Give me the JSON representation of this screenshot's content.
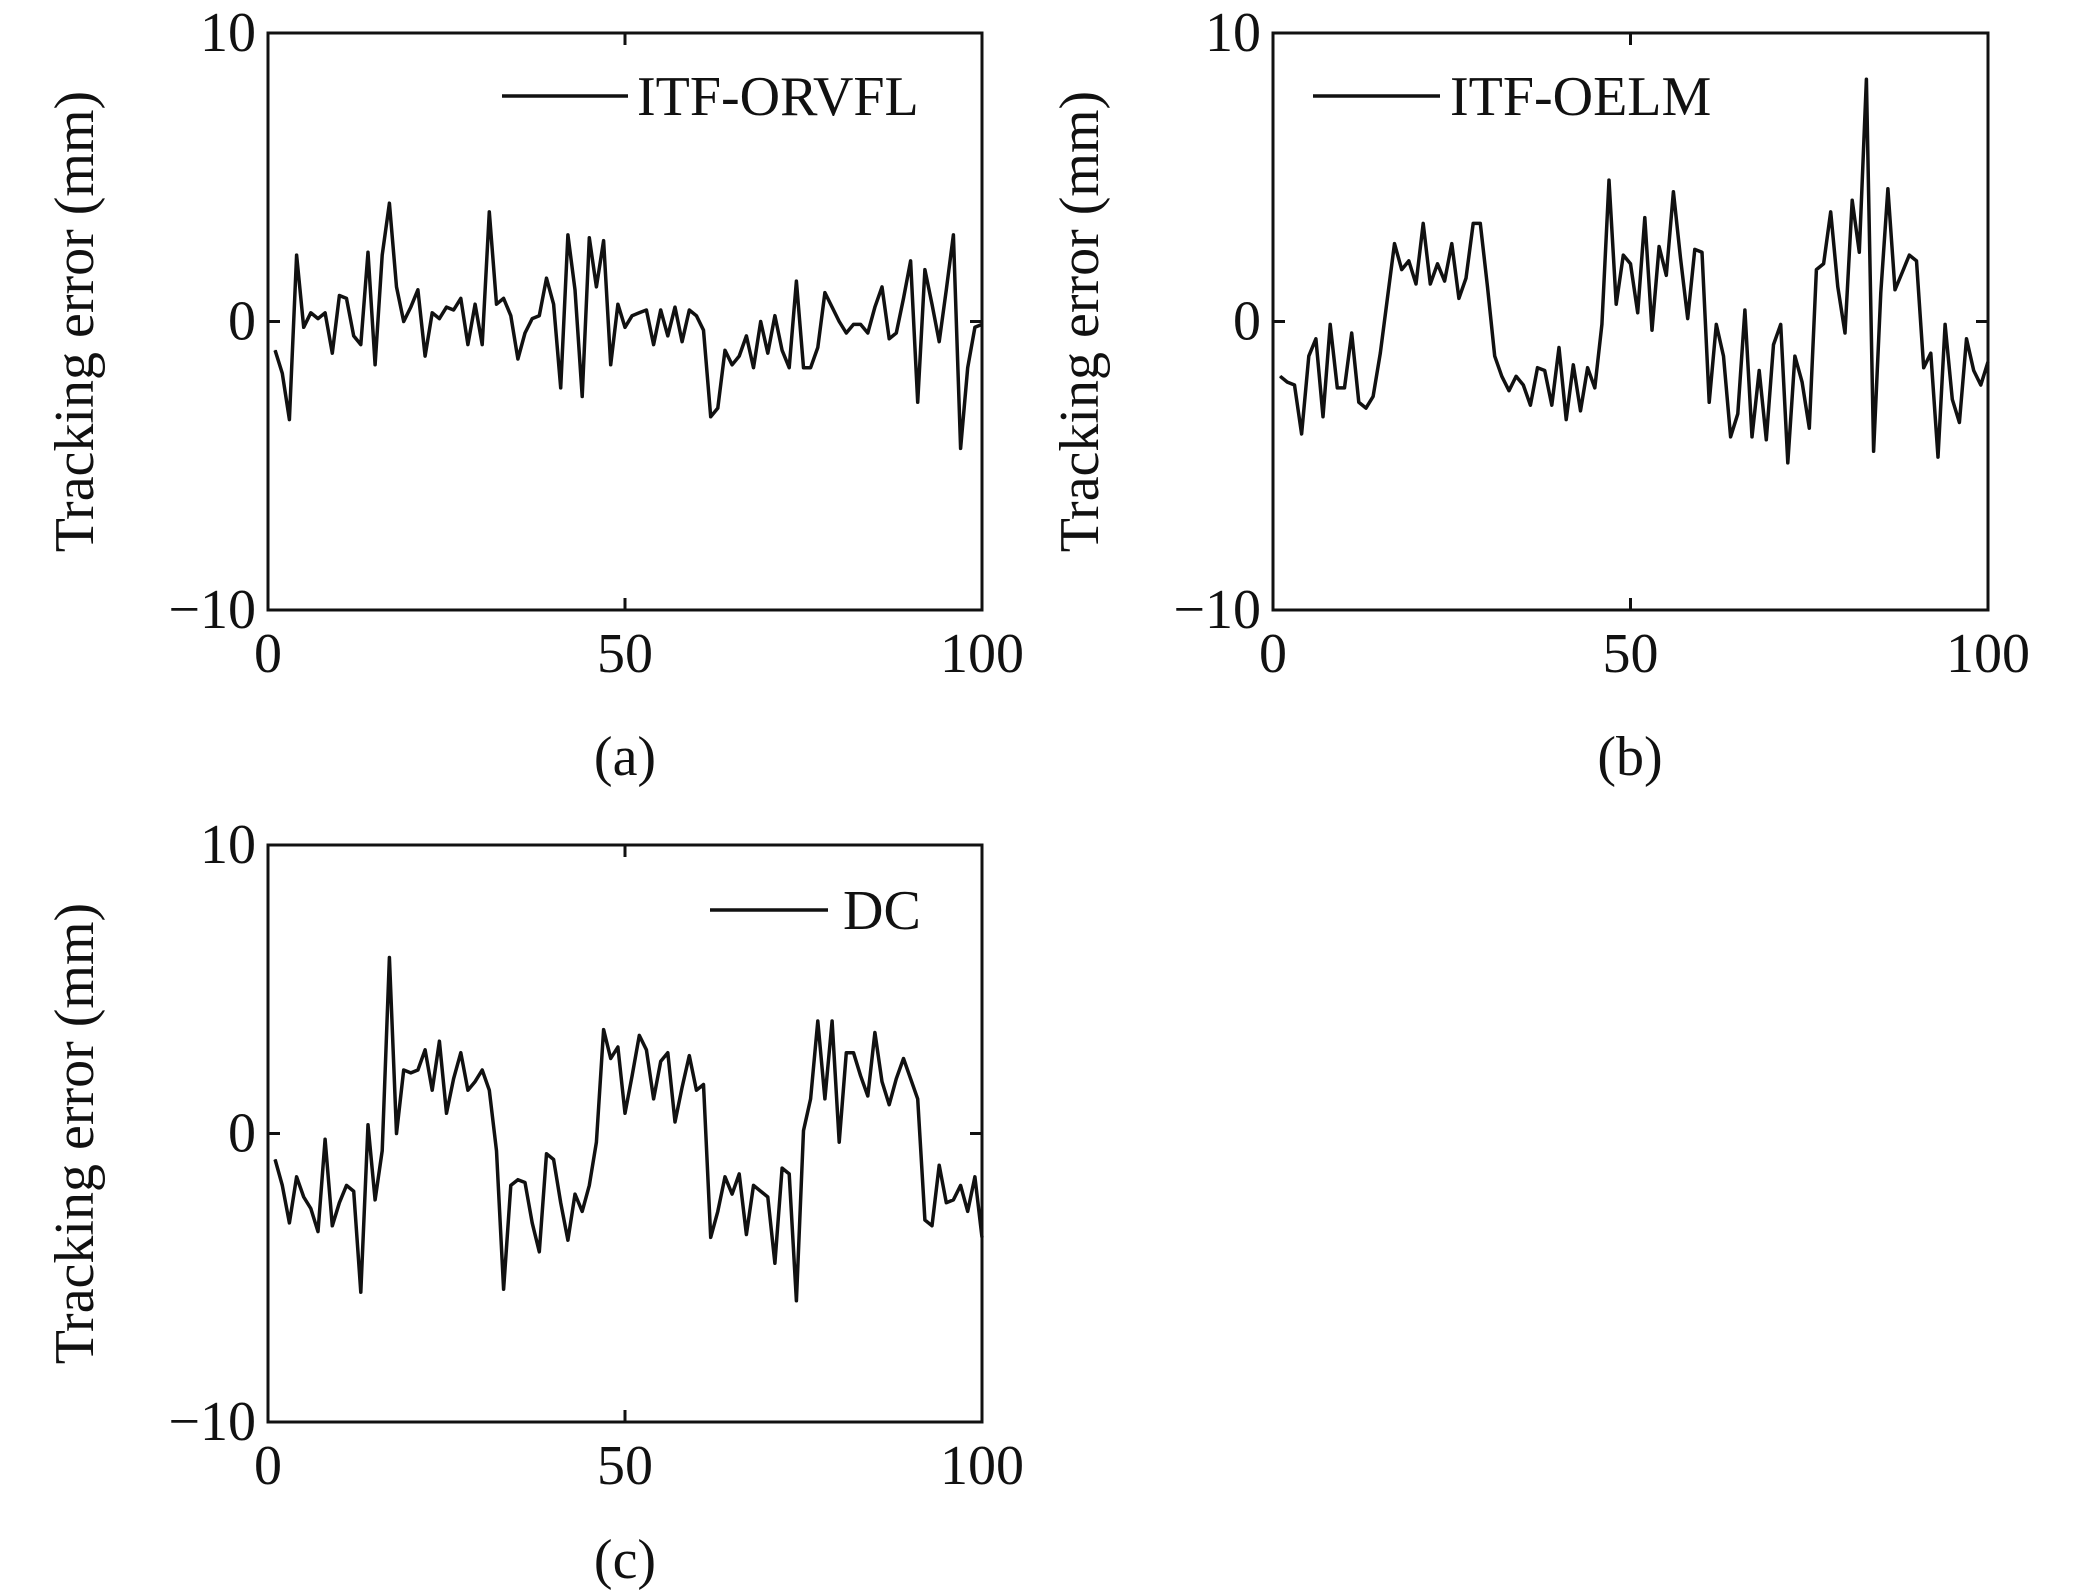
{
  "chart_data": [
    {
      "type": "line",
      "panel_label": "(a)",
      "ylabel": "Tracking error (mm)",
      "xlabel": "",
      "xlim": [
        0,
        100
      ],
      "ylim": [
        -10,
        10
      ],
      "xticks": [
        "0",
        "50",
        "100"
      ],
      "yticks": [
        "10",
        "0",
        "−10"
      ],
      "legend_position": "top-right",
      "series": [
        {
          "name": "ITF-ORVFL",
          "color": "#111111",
          "x": [
            1,
            2,
            3,
            4,
            5,
            6,
            7,
            8,
            9,
            10,
            11,
            12,
            13,
            14,
            15,
            16,
            17,
            18,
            19,
            20,
            21,
            22,
            23,
            24,
            25,
            26,
            27,
            28,
            29,
            30,
            31,
            32,
            33,
            34,
            35,
            36,
            37,
            38,
            39,
            40,
            41,
            42,
            43,
            44,
            45,
            46,
            47,
            48,
            49,
            50,
            51,
            52,
            53,
            54,
            55,
            56,
            57,
            58,
            59,
            60,
            61,
            62,
            63,
            64,
            65,
            66,
            67,
            68,
            69,
            70,
            71,
            72,
            73,
            74,
            75,
            76,
            77,
            78,
            79,
            80,
            81,
            82,
            83,
            84,
            85,
            86,
            87,
            88,
            89,
            90,
            91,
            92,
            93,
            94,
            95,
            96,
            97,
            98,
            99,
            100
          ],
          "values": [
            -1.0,
            -1.8,
            -3.4,
            2.3,
            -0.2,
            0.3,
            0.1,
            0.3,
            -1.1,
            0.9,
            0.8,
            -0.5,
            -0.8,
            2.4,
            -1.5,
            2.3,
            4.1,
            1.2,
            0.0,
            0.5,
            1.1,
            -1.2,
            0.3,
            0.1,
            0.5,
            0.4,
            0.8,
            -0.8,
            0.6,
            -0.8,
            3.8,
            0.6,
            0.8,
            0.2,
            -1.3,
            -0.4,
            0.1,
            0.2,
            1.5,
            0.6,
            -2.3,
            3.0,
            1.1,
            -2.6,
            2.9,
            1.2,
            2.8,
            -1.5,
            0.6,
            -0.2,
            0.2,
            0.3,
            0.4,
            -0.8,
            0.4,
            -0.5,
            0.5,
            -0.7,
            0.4,
            0.2,
            -0.3,
            -3.3,
            -3.0,
            -1.0,
            -1.5,
            -1.2,
            -0.5,
            -1.6,
            0.0,
            -1.1,
            0.2,
            -1.0,
            -1.6,
            1.4,
            -1.6,
            -1.6,
            -0.9,
            1.0,
            0.5,
            0.0,
            -0.4,
            -0.1,
            -0.1,
            -0.4,
            0.5,
            1.2,
            -0.6,
            -0.4,
            0.8,
            2.1,
            -2.8,
            1.8,
            0.6,
            -0.7,
            1.1,
            3.0,
            -4.4,
            -1.6,
            -0.2,
            -0.1
          ]
        }
      ]
    },
    {
      "type": "line",
      "panel_label": "(b)",
      "ylabel": "Tracking error (mm)",
      "xlabel": "",
      "xlim": [
        0,
        100
      ],
      "ylim": [
        -10,
        10
      ],
      "xticks": [
        "0",
        "50",
        "100"
      ],
      "yticks": [
        "10",
        "0",
        "−10"
      ],
      "legend_position": "top-left",
      "series": [
        {
          "name": "ITF-OELM",
          "color": "#111111",
          "x": [
            1,
            2,
            3,
            4,
            5,
            6,
            7,
            8,
            9,
            10,
            11,
            12,
            13,
            14,
            15,
            16,
            17,
            18,
            19,
            20,
            21,
            22,
            23,
            24,
            25,
            26,
            27,
            28,
            29,
            30,
            31,
            32,
            33,
            34,
            35,
            36,
            37,
            38,
            39,
            40,
            41,
            42,
            43,
            44,
            45,
            46,
            47,
            48,
            49,
            50,
            51,
            52,
            53,
            54,
            55,
            56,
            57,
            58,
            59,
            60,
            61,
            62,
            63,
            64,
            65,
            66,
            67,
            68,
            69,
            70,
            71,
            72,
            73,
            74,
            75,
            76,
            77,
            78,
            79,
            80,
            81,
            82,
            83,
            84,
            85,
            86,
            87,
            88,
            89,
            90,
            91,
            92,
            93,
            94,
            95,
            96,
            97,
            98,
            99,
            100
          ],
          "values": [
            -1.9,
            -2.1,
            -2.2,
            -3.9,
            -1.2,
            -0.6,
            -3.3,
            -0.1,
            -2.3,
            -2.3,
            -0.4,
            -2.8,
            -3.0,
            -2.6,
            -1.1,
            0.8,
            2.7,
            1.8,
            2.1,
            1.3,
            3.4,
            1.3,
            2.0,
            1.4,
            2.7,
            0.8,
            1.5,
            3.4,
            3.4,
            1.2,
            -1.2,
            -1.9,
            -2.4,
            -1.9,
            -2.2,
            -2.9,
            -1.6,
            -1.7,
            -2.9,
            -0.9,
            -3.4,
            -1.5,
            -3.1,
            -1.6,
            -2.3,
            -0.1,
            4.9,
            0.6,
            2.3,
            2.0,
            0.3,
            3.6,
            -0.3,
            2.6,
            1.6,
            4.5,
            2.2,
            0.1,
            2.5,
            2.4,
            -2.8,
            -0.1,
            -1.2,
            -4.0,
            -3.2,
            0.4,
            -4.0,
            -1.7,
            -4.1,
            -0.8,
            -0.1,
            -4.9,
            -1.2,
            -2.1,
            -3.7,
            1.8,
            2.0,
            3.8,
            1.2,
            -0.4,
            4.2,
            2.4,
            8.4,
            -4.5,
            1.0,
            4.6,
            1.1,
            1.7,
            2.3,
            2.1,
            -1.6,
            -1.1,
            -4.7,
            -0.1,
            -2.7,
            -3.5,
            -0.6,
            -1.7,
            -2.2,
            -1.4
          ]
        }
      ]
    },
    {
      "type": "line",
      "panel_label": "(c)",
      "ylabel": "Tracking error (mm)",
      "xlabel": "",
      "xlim": [
        0,
        100
      ],
      "ylim": [
        -10,
        10
      ],
      "xticks": [
        "0",
        "50",
        "100"
      ],
      "yticks": [
        "10",
        "0",
        "−10"
      ],
      "legend_position": "top-right",
      "series": [
        {
          "name": "DC",
          "color": "#111111",
          "x": [
            1,
            2,
            3,
            4,
            5,
            6,
            7,
            8,
            9,
            10,
            11,
            12,
            13,
            14,
            15,
            16,
            17,
            18,
            19,
            20,
            21,
            22,
            23,
            24,
            25,
            26,
            27,
            28,
            29,
            30,
            31,
            32,
            33,
            34,
            35,
            36,
            37,
            38,
            39,
            40,
            41,
            42,
            43,
            44,
            45,
            46,
            47,
            48,
            49,
            50,
            51,
            52,
            53,
            54,
            55,
            56,
            57,
            58,
            59,
            60,
            61,
            62,
            63,
            64,
            65,
            66,
            67,
            68,
            69,
            70,
            71,
            72,
            73,
            74,
            75,
            76,
            77,
            78,
            79,
            80,
            81,
            82,
            83,
            84,
            85,
            86,
            87,
            88,
            89,
            90,
            91,
            92,
            93,
            94,
            95,
            96,
            97,
            98,
            99,
            100
          ],
          "values": [
            -0.9,
            -1.8,
            -3.1,
            -1.5,
            -2.2,
            -2.6,
            -3.4,
            -0.2,
            -3.2,
            -2.4,
            -1.8,
            -2.0,
            -5.5,
            0.3,
            -2.3,
            -0.6,
            6.1,
            0.0,
            2.2,
            2.1,
            2.2,
            2.9,
            1.5,
            3.2,
            0.7,
            1.9,
            2.8,
            1.5,
            1.8,
            2.2,
            1.5,
            -0.6,
            -5.4,
            -1.8,
            -1.6,
            -1.7,
            -3.1,
            -4.1,
            -0.7,
            -0.9,
            -2.4,
            -3.7,
            -2.1,
            -2.7,
            -1.8,
            -0.3,
            3.6,
            2.6,
            3.0,
            0.7,
            2.0,
            3.4,
            2.9,
            1.2,
            2.5,
            2.8,
            0.4,
            1.6,
            2.7,
            1.5,
            1.7,
            -3.6,
            -2.7,
            -1.5,
            -2.1,
            -1.4,
            -3.5,
            -1.8,
            -2.0,
            -2.2,
            -4.5,
            -1.2,
            -1.4,
            -5.8,
            0.1,
            1.2,
            3.9,
            1.2,
            3.9,
            -0.3,
            2.8,
            2.8,
            2.0,
            1.3,
            3.5,
            1.8,
            1.0,
            1.9,
            2.6,
            1.9,
            1.2,
            -3.0,
            -3.2,
            -1.1,
            -2.4,
            -2.3,
            -1.8,
            -2.7,
            -1.5,
            -3.6
          ]
        }
      ]
    }
  ]
}
